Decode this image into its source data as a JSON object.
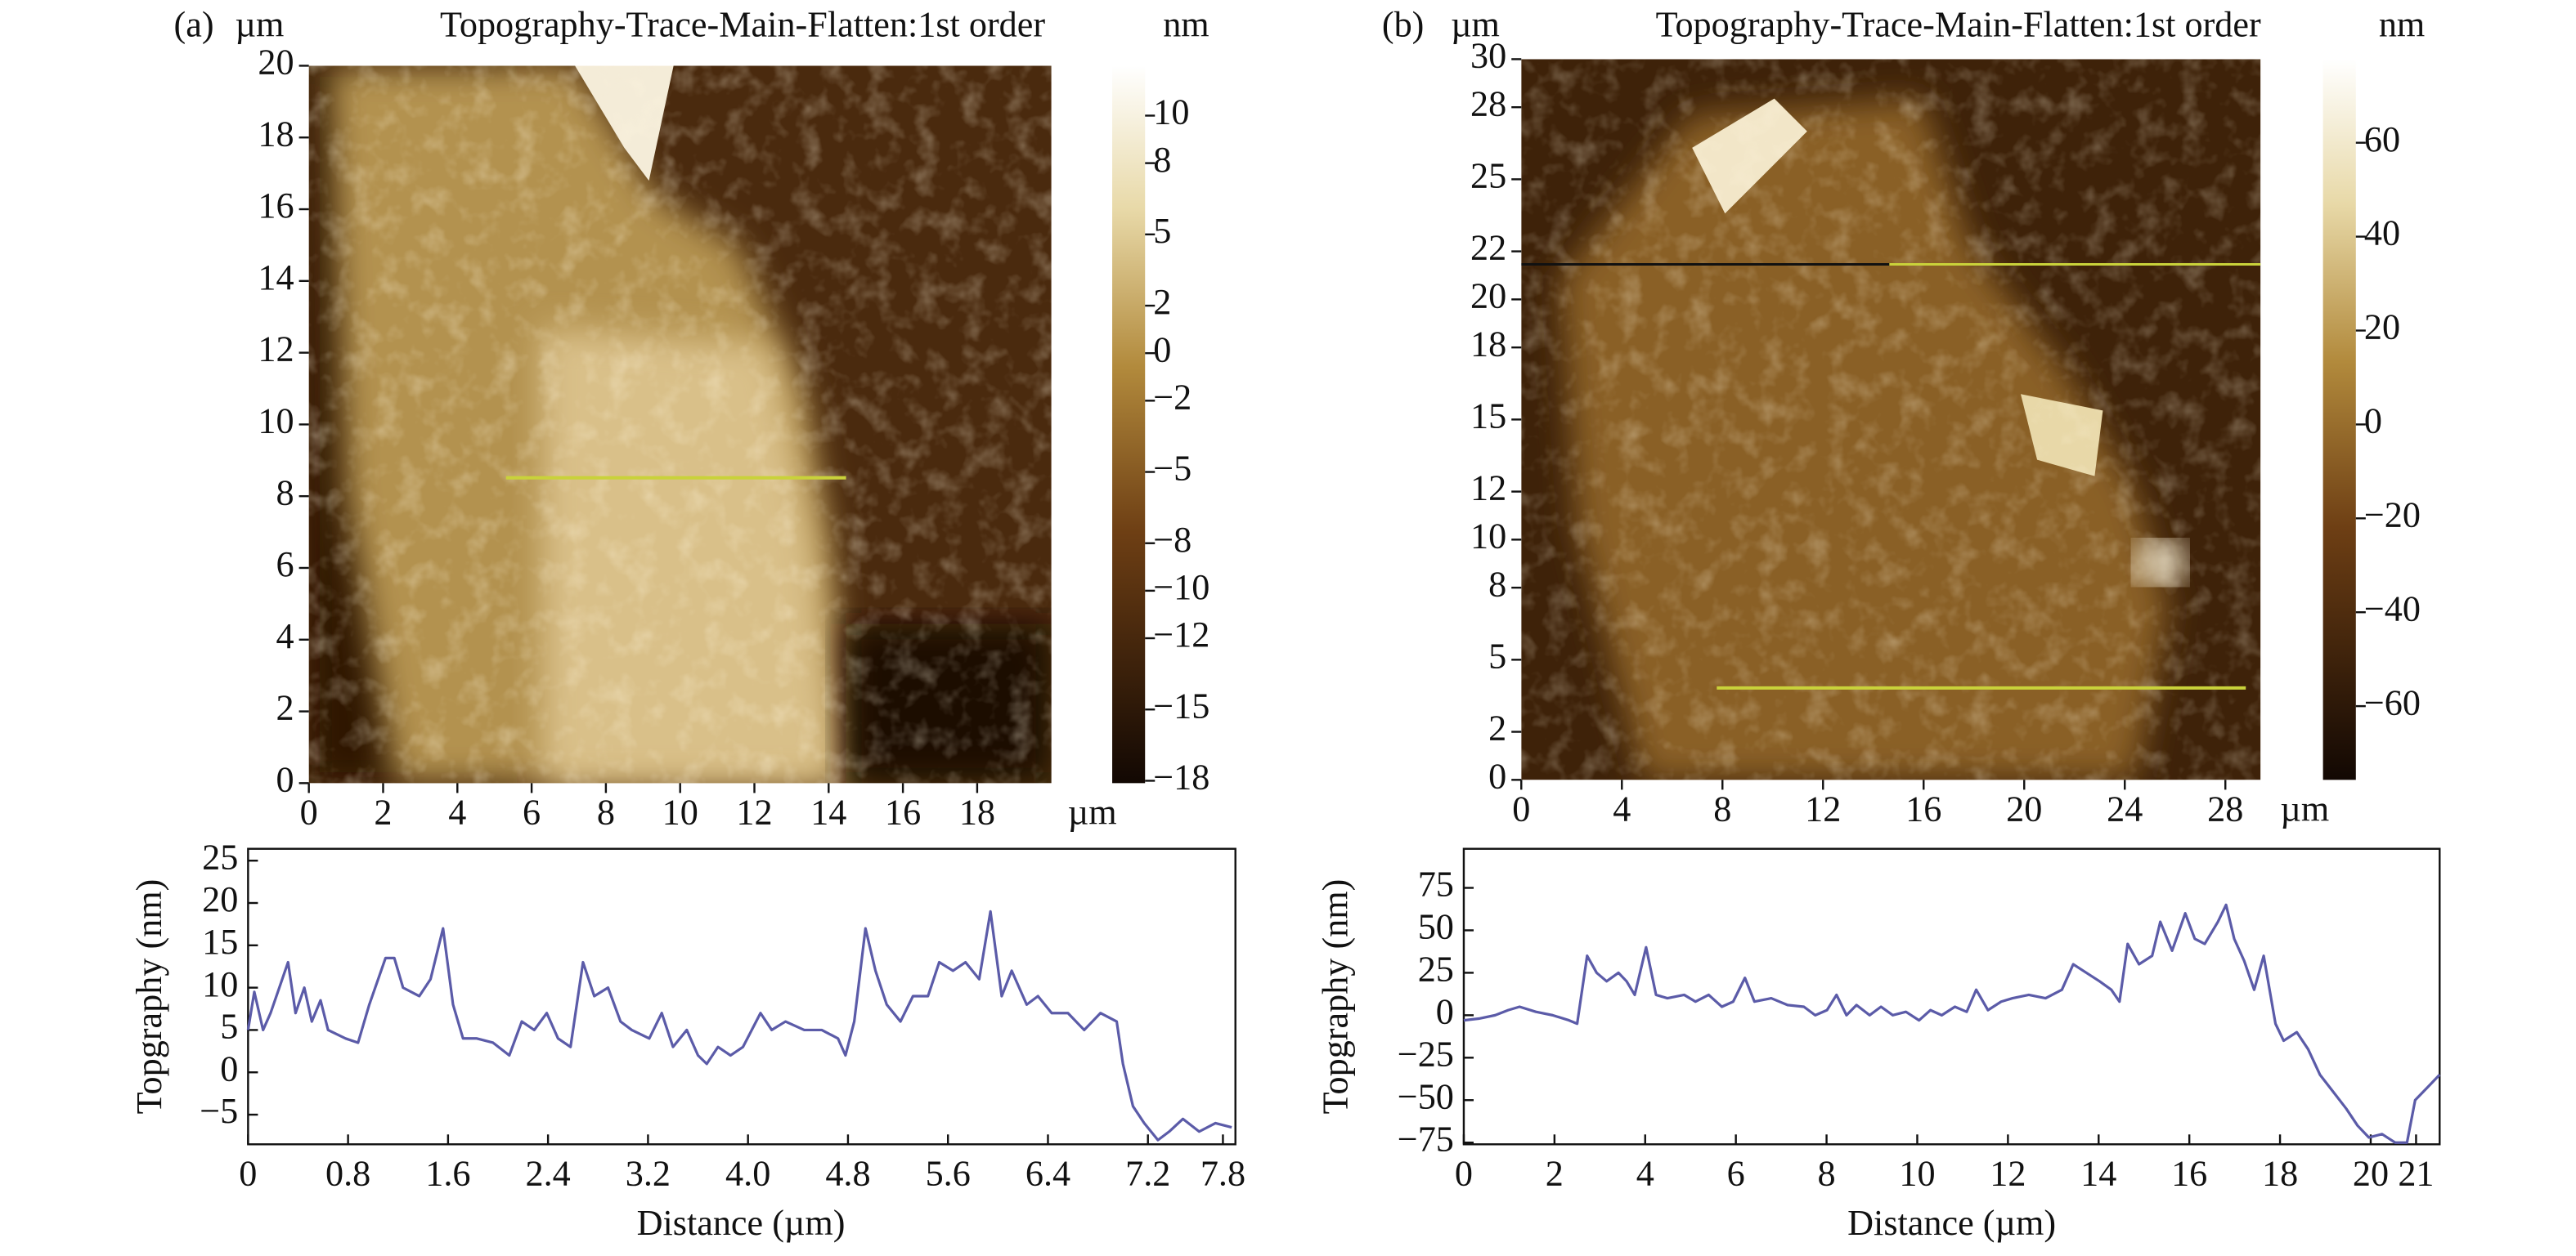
{
  "chart_data": [
    {
      "type": "image",
      "label": "(a)",
      "title": "Topography-Trace-Main-Flatten:1st order",
      "y_unit": "µm",
      "x_unit": "µm",
      "colorbar_unit": "nm",
      "xlim": [
        0,
        20
      ],
      "xticks": [
        0,
        2,
        4,
        6,
        8,
        10,
        12,
        14,
        16,
        18
      ],
      "ylim": [
        0,
        20
      ],
      "yticks": [
        0,
        2,
        4,
        6,
        8,
        10,
        12,
        14,
        16,
        18,
        20
      ],
      "clim": [
        -18.1,
        12.1
      ],
      "cticks": [
        10,
        8,
        5,
        2,
        0,
        {
          "value": -2,
          "label": "−2"
        },
        {
          "value": -5,
          "label": "−5"
        },
        {
          "value": -8,
          "label": "−8"
        },
        {
          "value": -10,
          "label": "−10"
        },
        {
          "value": -12,
          "label": "−12"
        },
        {
          "value": -15,
          "label": "−15"
        },
        {
          "value": -18,
          "label": "−18"
        }
      ]
    },
    {
      "type": "line",
      "xlabel": "Distance (µm)",
      "ylabel": "Topgraphy (nm)",
      "xlim": [
        0,
        7.9
      ],
      "xticks": [
        0,
        0.8,
        1.6,
        2.4,
        3.2,
        {
          "value": 4,
          "label": "4.0"
        },
        4.8,
        5.6,
        6.4,
        7.2,
        7.8
      ],
      "ylim": [
        -8.5,
        26.4
      ],
      "yticks": [
        25,
        20,
        15,
        10,
        5,
        0,
        {
          "value": -5,
          "label": "−5"
        }
      ],
      "x": [
        0,
        0.05,
        0.12,
        0.18,
        0.25,
        0.32,
        0.38,
        0.45,
        0.51,
        0.58,
        0.64,
        0.78,
        0.88,
        0.97,
        1.1,
        1.17,
        1.24,
        1.37,
        1.46,
        1.56,
        1.64,
        1.72,
        1.83,
        1.96,
        2.09,
        2.19,
        2.29,
        2.39,
        2.48,
        2.58,
        2.68,
        2.77,
        2.88,
        2.98,
        3.07,
        3.21,
        3.31,
        3.4,
        3.51,
        3.6,
        3.67,
        3.76,
        3.86,
        3.96,
        4.1,
        4.19,
        4.3,
        4.45,
        4.59,
        4.72,
        4.78,
        4.85,
        4.94,
        5.02,
        5.11,
        5.22,
        5.32,
        5.44,
        5.53,
        5.64,
        5.74,
        5.85,
        5.94,
        6.03,
        6.11,
        6.23,
        6.32,
        6.43,
        6.56,
        6.69,
        6.82,
        6.95,
        7.0,
        7.08,
        7.17,
        7.28,
        7.37,
        7.48,
        7.61,
        7.74,
        7.87
      ],
      "series": [
        {
          "color": "#5b5ba8",
          "values": [
            5,
            9.5,
            5,
            7,
            10,
            13,
            7,
            10,
            6,
            8.5,
            5,
            4,
            3.5,
            8,
            13.5,
            13.5,
            10,
            9,
            11,
            17,
            8,
            4,
            4,
            3.5,
            2,
            6,
            5,
            7,
            4,
            3,
            13,
            9,
            10,
            6,
            5,
            4,
            7,
            3,
            5,
            2,
            1,
            3,
            2,
            3,
            7,
            5,
            6,
            5,
            5,
            4,
            2,
            6,
            17,
            12,
            8,
            6,
            9,
            9,
            13,
            12,
            13,
            11,
            19,
            9,
            12,
            8,
            9,
            7,
            7,
            5,
            7,
            6,
            1,
            -4,
            -6,
            -8,
            -7,
            -5.5,
            -7,
            -6,
            -6.5
          ]
        }
      ]
    },
    {
      "type": "image",
      "label": "(b)",
      "title": "Topography-Trace-Main-Flatten:1st order",
      "y_unit": "µm",
      "x_unit": "µm",
      "colorbar_unit": "nm",
      "xlim": [
        0,
        29.4
      ],
      "xticks": [
        0,
        4,
        8,
        12,
        16,
        20,
        24,
        28
      ],
      "ylim": [
        0,
        30
      ],
      "yticks": [
        0,
        2,
        5,
        8,
        10,
        12,
        15,
        18,
        20,
        22,
        25,
        28,
        30
      ],
      "clim": [
        -75.7,
        77.8
      ],
      "cticks": [
        60,
        40,
        20,
        0,
        {
          "value": -20,
          "label": "−20"
        },
        {
          "value": -40,
          "label": "−40"
        },
        {
          "value": -60,
          "label": "−60"
        }
      ]
    },
    {
      "type": "line",
      "xlabel": "Distance (µm)",
      "ylabel": "Topgraphy (nm)",
      "xlim": [
        0,
        21.52
      ],
      "xticks": [
        0,
        2,
        4,
        6,
        8,
        10,
        12,
        14,
        16,
        18,
        20,
        21
      ],
      "ylim": [
        -76,
        98
      ],
      "yticks": [
        75,
        50,
        25,
        0,
        {
          "value": -25,
          "label": "−25"
        },
        {
          "value": -50,
          "label": "−50"
        },
        {
          "value": -75,
          "label": "−75"
        }
      ],
      "x": [
        0,
        0.33,
        0.69,
        0.98,
        1.23,
        1.59,
        1.96,
        2.32,
        2.5,
        2.72,
        2.93,
        3.15,
        3.41,
        3.59,
        3.77,
        4.02,
        4.24,
        4.49,
        4.86,
        5.11,
        5.4,
        5.69,
        5.94,
        6.2,
        6.41,
        6.78,
        7.14,
        7.5,
        7.75,
        8.01,
        8.22,
        8.44,
        8.66,
        8.95,
        9.2,
        9.46,
        9.75,
        10.04,
        10.29,
        10.54,
        10.83,
        11.09,
        11.3,
        11.56,
        11.85,
        12.1,
        12.46,
        12.83,
        13.19,
        13.44,
        13.73,
        14.02,
        14.28,
        14.46,
        14.64,
        14.89,
        15.18,
        15.36,
        15.62,
        15.91,
        16.12,
        16.34,
        16.63,
        16.81,
        16.99,
        17.21,
        17.43,
        17.64,
        17.9,
        18.08,
        18.37,
        18.62,
        18.88,
        19.17,
        19.46,
        19.71,
        19.96,
        20.25,
        20.54,
        20.8,
        20.98,
        21.27,
        21.52
      ],
      "series": [
        {
          "color": "#5b5ba8",
          "values": [
            -3,
            -2,
            0,
            3,
            5,
            2,
            0,
            -3,
            -5,
            35,
            25,
            20,
            25,
            20,
            12,
            40,
            12,
            10,
            12,
            8,
            12,
            5,
            8,
            22,
            8,
            10,
            6,
            5,
            0,
            3,
            12,
            0,
            6,
            0,
            5,
            0,
            2,
            -3,
            3,
            0,
            5,
            2,
            15,
            3,
            8,
            10,
            12,
            10,
            15,
            30,
            25,
            20,
            15,
            8,
            42,
            30,
            35,
            55,
            38,
            60,
            45,
            42,
            55,
            65,
            45,
            32,
            15,
            35,
            -5,
            -15,
            -10,
            -20,
            -35,
            -45,
            -55,
            -65,
            -72,
            -70,
            -75,
            -75,
            -50,
            -42,
            -35
          ]
        }
      ]
    }
  ]
}
